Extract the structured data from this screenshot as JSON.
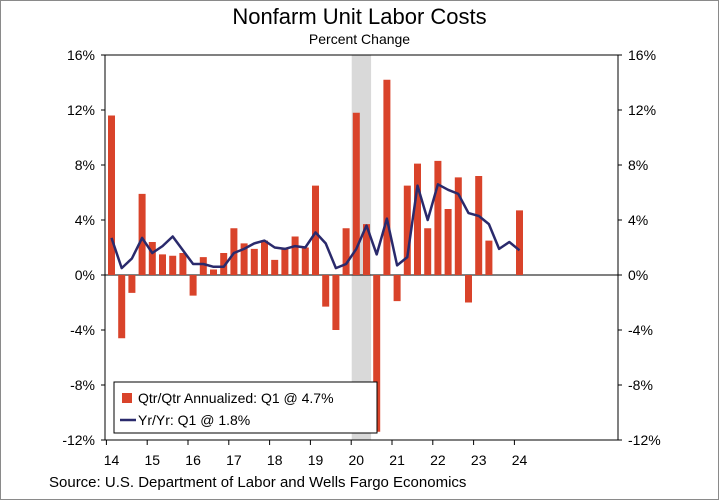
{
  "title": "Nonfarm Unit Labor Costs",
  "subtitle": "Percent Change",
  "source": "Source: U.S. Department of Labor and Wells Fargo Economics",
  "colors": {
    "bars": "#d9432a",
    "line": "#2a2a6c",
    "recession": "#d9d9d9",
    "axis": "#000000"
  },
  "chart_data": {
    "type": "bar",
    "ylim": [
      -12,
      16
    ],
    "yticks": [
      16,
      12,
      8,
      4,
      0,
      -4,
      -8,
      -12
    ],
    "ytick_labels": [
      "16%",
      "12%",
      "8%",
      "4%",
      "0%",
      "-4%",
      "-8%",
      "-12%"
    ],
    "x_tick_labels": [
      "14",
      "15",
      "16",
      "17",
      "18",
      "19",
      "20",
      "21",
      "22",
      "23",
      "24"
    ],
    "recession_shading": {
      "start": "2020Q1",
      "end": "2020Q2"
    },
    "legend_position": "bottom-left",
    "quarters": [
      "2014Q1",
      "2014Q2",
      "2014Q3",
      "2014Q4",
      "2015Q1",
      "2015Q2",
      "2015Q3",
      "2015Q4",
      "2016Q1",
      "2016Q2",
      "2016Q3",
      "2016Q4",
      "2017Q1",
      "2017Q2",
      "2017Q3",
      "2017Q4",
      "2018Q1",
      "2018Q2",
      "2018Q3",
      "2018Q4",
      "2019Q1",
      "2019Q2",
      "2019Q3",
      "2019Q4",
      "2020Q1",
      "2020Q2",
      "2020Q3",
      "2020Q4",
      "2021Q1",
      "2021Q2",
      "2021Q3",
      "2021Q4",
      "2022Q1",
      "2022Q2",
      "2022Q3",
      "2022Q4",
      "2023Q1",
      "2023Q2",
      "2023Q3",
      "2023Q4",
      "2024Q1"
    ],
    "series": [
      {
        "name": "Qtr/Qtr Annualized: Q1 @ 4.7%",
        "kind": "bar",
        "values": [
          11.6,
          -4.6,
          -1.3,
          5.9,
          2.4,
          1.5,
          1.4,
          1.6,
          -1.5,
          1.3,
          0.4,
          1.6,
          3.4,
          2.3,
          1.9,
          2.5,
          1.1,
          2.0,
          2.8,
          2.0,
          6.5,
          -2.3,
          -4.0,
          3.4,
          11.8,
          3.7,
          -11.4,
          14.2,
          -1.9,
          6.5,
          8.1,
          3.4,
          8.3,
          4.8,
          7.1,
          -2.0,
          7.2,
          2.5,
          0.0,
          0.0,
          4.7
        ]
      },
      {
        "name": "Yr/Yr: Q1 @ 1.8%",
        "kind": "line",
        "values": [
          2.7,
          0.5,
          1.2,
          2.7,
          1.6,
          2.1,
          2.8,
          1.8,
          0.8,
          0.8,
          0.6,
          0.6,
          1.6,
          1.9,
          2.3,
          2.5,
          2.0,
          1.9,
          2.1,
          2.0,
          3.1,
          2.3,
          0.5,
          0.8,
          1.9,
          3.6,
          1.5,
          4.1,
          0.7,
          1.3,
          6.5,
          4.0,
          6.6,
          6.2,
          5.9,
          4.5,
          4.3,
          3.7,
          1.9,
          2.4,
          1.8
        ]
      }
    ]
  }
}
